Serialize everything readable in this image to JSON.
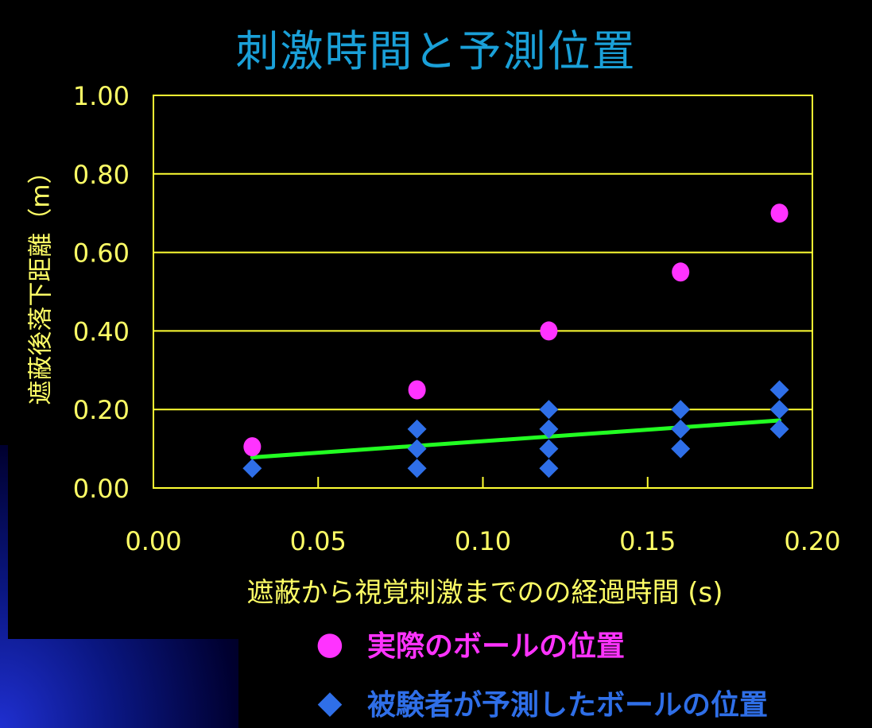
{
  "colors": {
    "background": "#000000",
    "title": "#1aa0d8",
    "axis_text": "#ffff66",
    "gridline": "#ffff33",
    "actual_marker": "#ff33ff",
    "predicted_marker": "#2f6fe8",
    "trendline": "#22ff22"
  },
  "chart_data": {
    "type": "scatter",
    "title": "刺激時間と予測位置",
    "xlabel": "遮蔽から視覚刺激までのの経過時間 (s)",
    "ylabel": "遮蔽後落下距離（m）",
    "xlim": [
      0,
      0.2
    ],
    "ylim": [
      0,
      1.0
    ],
    "x_ticks": [
      "0.00",
      "0.05",
      "0.10",
      "0.15",
      "0.20"
    ],
    "y_ticks": [
      "0.00",
      "0.20",
      "0.40",
      "0.60",
      "0.80",
      "1.00"
    ],
    "grid": "horizontal",
    "legend_position": "bottom",
    "series": [
      {
        "name": "実際のボールの位置",
        "marker": "circle",
        "color": "#ff33ff",
        "points": [
          {
            "x": 0.03,
            "y": 0.105
          },
          {
            "x": 0.08,
            "y": 0.25
          },
          {
            "x": 0.12,
            "y": 0.4
          },
          {
            "x": 0.16,
            "y": 0.55
          },
          {
            "x": 0.19,
            "y": 0.7
          }
        ]
      },
      {
        "name": "被験者が予測したボールの位置",
        "marker": "diamond",
        "color": "#2f6fe8",
        "points": [
          {
            "x": 0.03,
            "y": 0.05
          },
          {
            "x": 0.08,
            "y": 0.05
          },
          {
            "x": 0.08,
            "y": 0.1
          },
          {
            "x": 0.08,
            "y": 0.15
          },
          {
            "x": 0.12,
            "y": 0.05
          },
          {
            "x": 0.12,
            "y": 0.1
          },
          {
            "x": 0.12,
            "y": 0.15
          },
          {
            "x": 0.12,
            "y": 0.2
          },
          {
            "x": 0.16,
            "y": 0.1
          },
          {
            "x": 0.16,
            "y": 0.15
          },
          {
            "x": 0.16,
            "y": 0.2
          },
          {
            "x": 0.19,
            "y": 0.15
          },
          {
            "x": 0.19,
            "y": 0.2
          },
          {
            "x": 0.19,
            "y": 0.25
          }
        ]
      }
    ],
    "trendline": {
      "color": "#22ff22",
      "points": [
        {
          "x": 0.03,
          "y": 0.078
        },
        {
          "x": 0.19,
          "y": 0.172
        }
      ]
    }
  },
  "legend": {
    "actual_marker": "●",
    "predicted_marker": "◆"
  }
}
